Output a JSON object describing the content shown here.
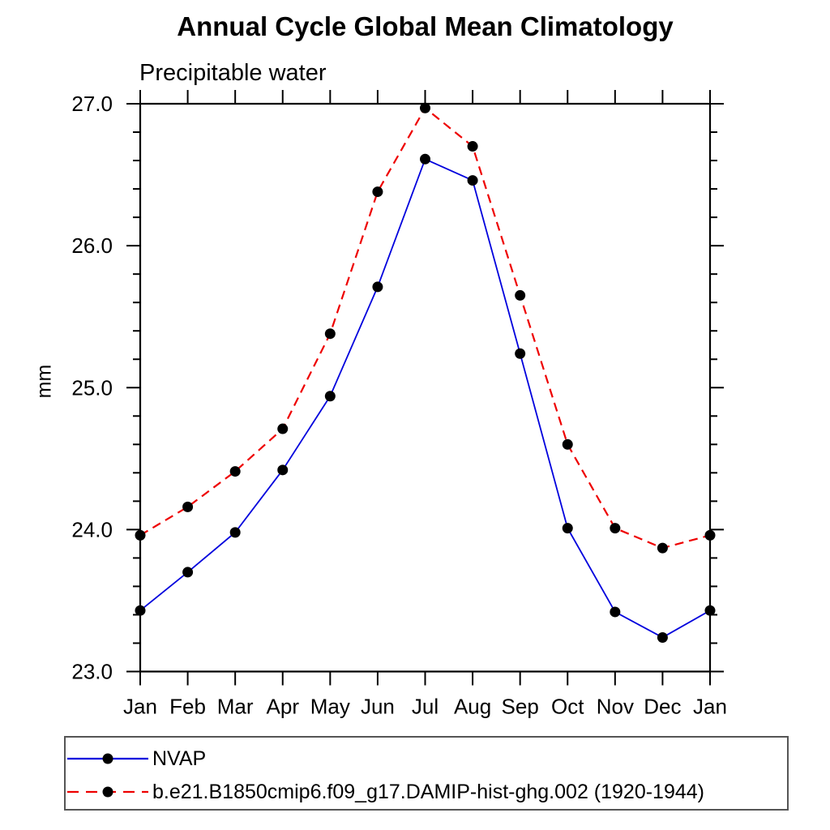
{
  "title": "Annual Cycle Global Mean Climatology",
  "subtitle": "Precipitable water",
  "chart_data": {
    "type": "line",
    "title": "Annual Cycle Global Mean Climatology",
    "subtitle": "Precipitable water",
    "ylabel": "mm",
    "xlabel": "",
    "categories": [
      "Jan",
      "Feb",
      "Mar",
      "Apr",
      "May",
      "Jun",
      "Jul",
      "Aug",
      "Sep",
      "Oct",
      "Nov",
      "Dec",
      "Jan"
    ],
    "ylim": [
      23.0,
      27.0
    ],
    "y_major_ticks": [
      23.0,
      24.0,
      25.0,
      26.0,
      27.0
    ],
    "y_tick_labels": [
      "23.0",
      "24.0",
      "25.0",
      "26.0",
      "27.0"
    ],
    "y_minor_step": 0.2,
    "grid": "off",
    "legend_position": "bottom-left-box",
    "marker": "filled-circle",
    "marker_color": "#000000",
    "series": [
      {
        "name": "NVAP",
        "color": "#0000dd",
        "line_style": "solid",
        "values": [
          23.43,
          23.7,
          23.98,
          24.42,
          24.94,
          25.71,
          26.61,
          26.46,
          25.24,
          24.01,
          23.42,
          23.24,
          23.43
        ]
      },
      {
        "name": "b.e21.B1850cmip6.f09_g17.DAMIP-hist-ghg.002 (1920-1944)",
        "color": "#ee0000",
        "line_style": "dashed",
        "values": [
          23.96,
          24.16,
          24.41,
          24.71,
          25.38,
          26.38,
          26.97,
          26.7,
          25.65,
          24.6,
          24.01,
          23.87,
          23.96
        ]
      }
    ]
  }
}
